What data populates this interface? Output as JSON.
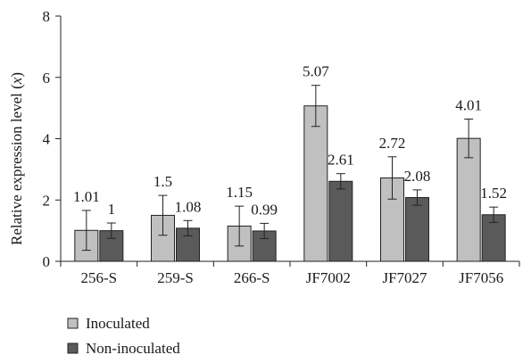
{
  "chart_data": {
    "type": "bar",
    "ylabel": "Relative expression level (x)",
    "ylabel_parts": [
      "Relative expression level (",
      "x",
      ")"
    ],
    "ylim": [
      0,
      8
    ],
    "yticks": [
      "0",
      "2",
      "4",
      "6",
      "8"
    ],
    "categories": [
      "256-S",
      "259-S",
      "266-S",
      "JF7002",
      "JF7027",
      "JF7056"
    ],
    "series": [
      {
        "name": "Inoculated",
        "color": "#c0c0c0",
        "values": [
          1.01,
          1.5,
          1.15,
          5.07,
          2.72,
          4.01
        ],
        "labels": [
          "1.01",
          "1.5",
          "1.15",
          "5.07",
          "2.72",
          "4.01"
        ],
        "error": [
          0.65,
          0.65,
          0.65,
          0.67,
          0.69,
          0.63
        ]
      },
      {
        "name": "Non-inoculated",
        "color": "#5a5a5a",
        "values": [
          1,
          1.08,
          0.99,
          2.61,
          2.08,
          1.52
        ],
        "labels": [
          "1",
          "1.08",
          "0.99",
          "2.61",
          "2.08",
          "1.52"
        ],
        "error": [
          0.25,
          0.25,
          0.25,
          0.25,
          0.25,
          0.25
        ]
      }
    ],
    "legend_position": "bottom-left",
    "grid": false
  }
}
